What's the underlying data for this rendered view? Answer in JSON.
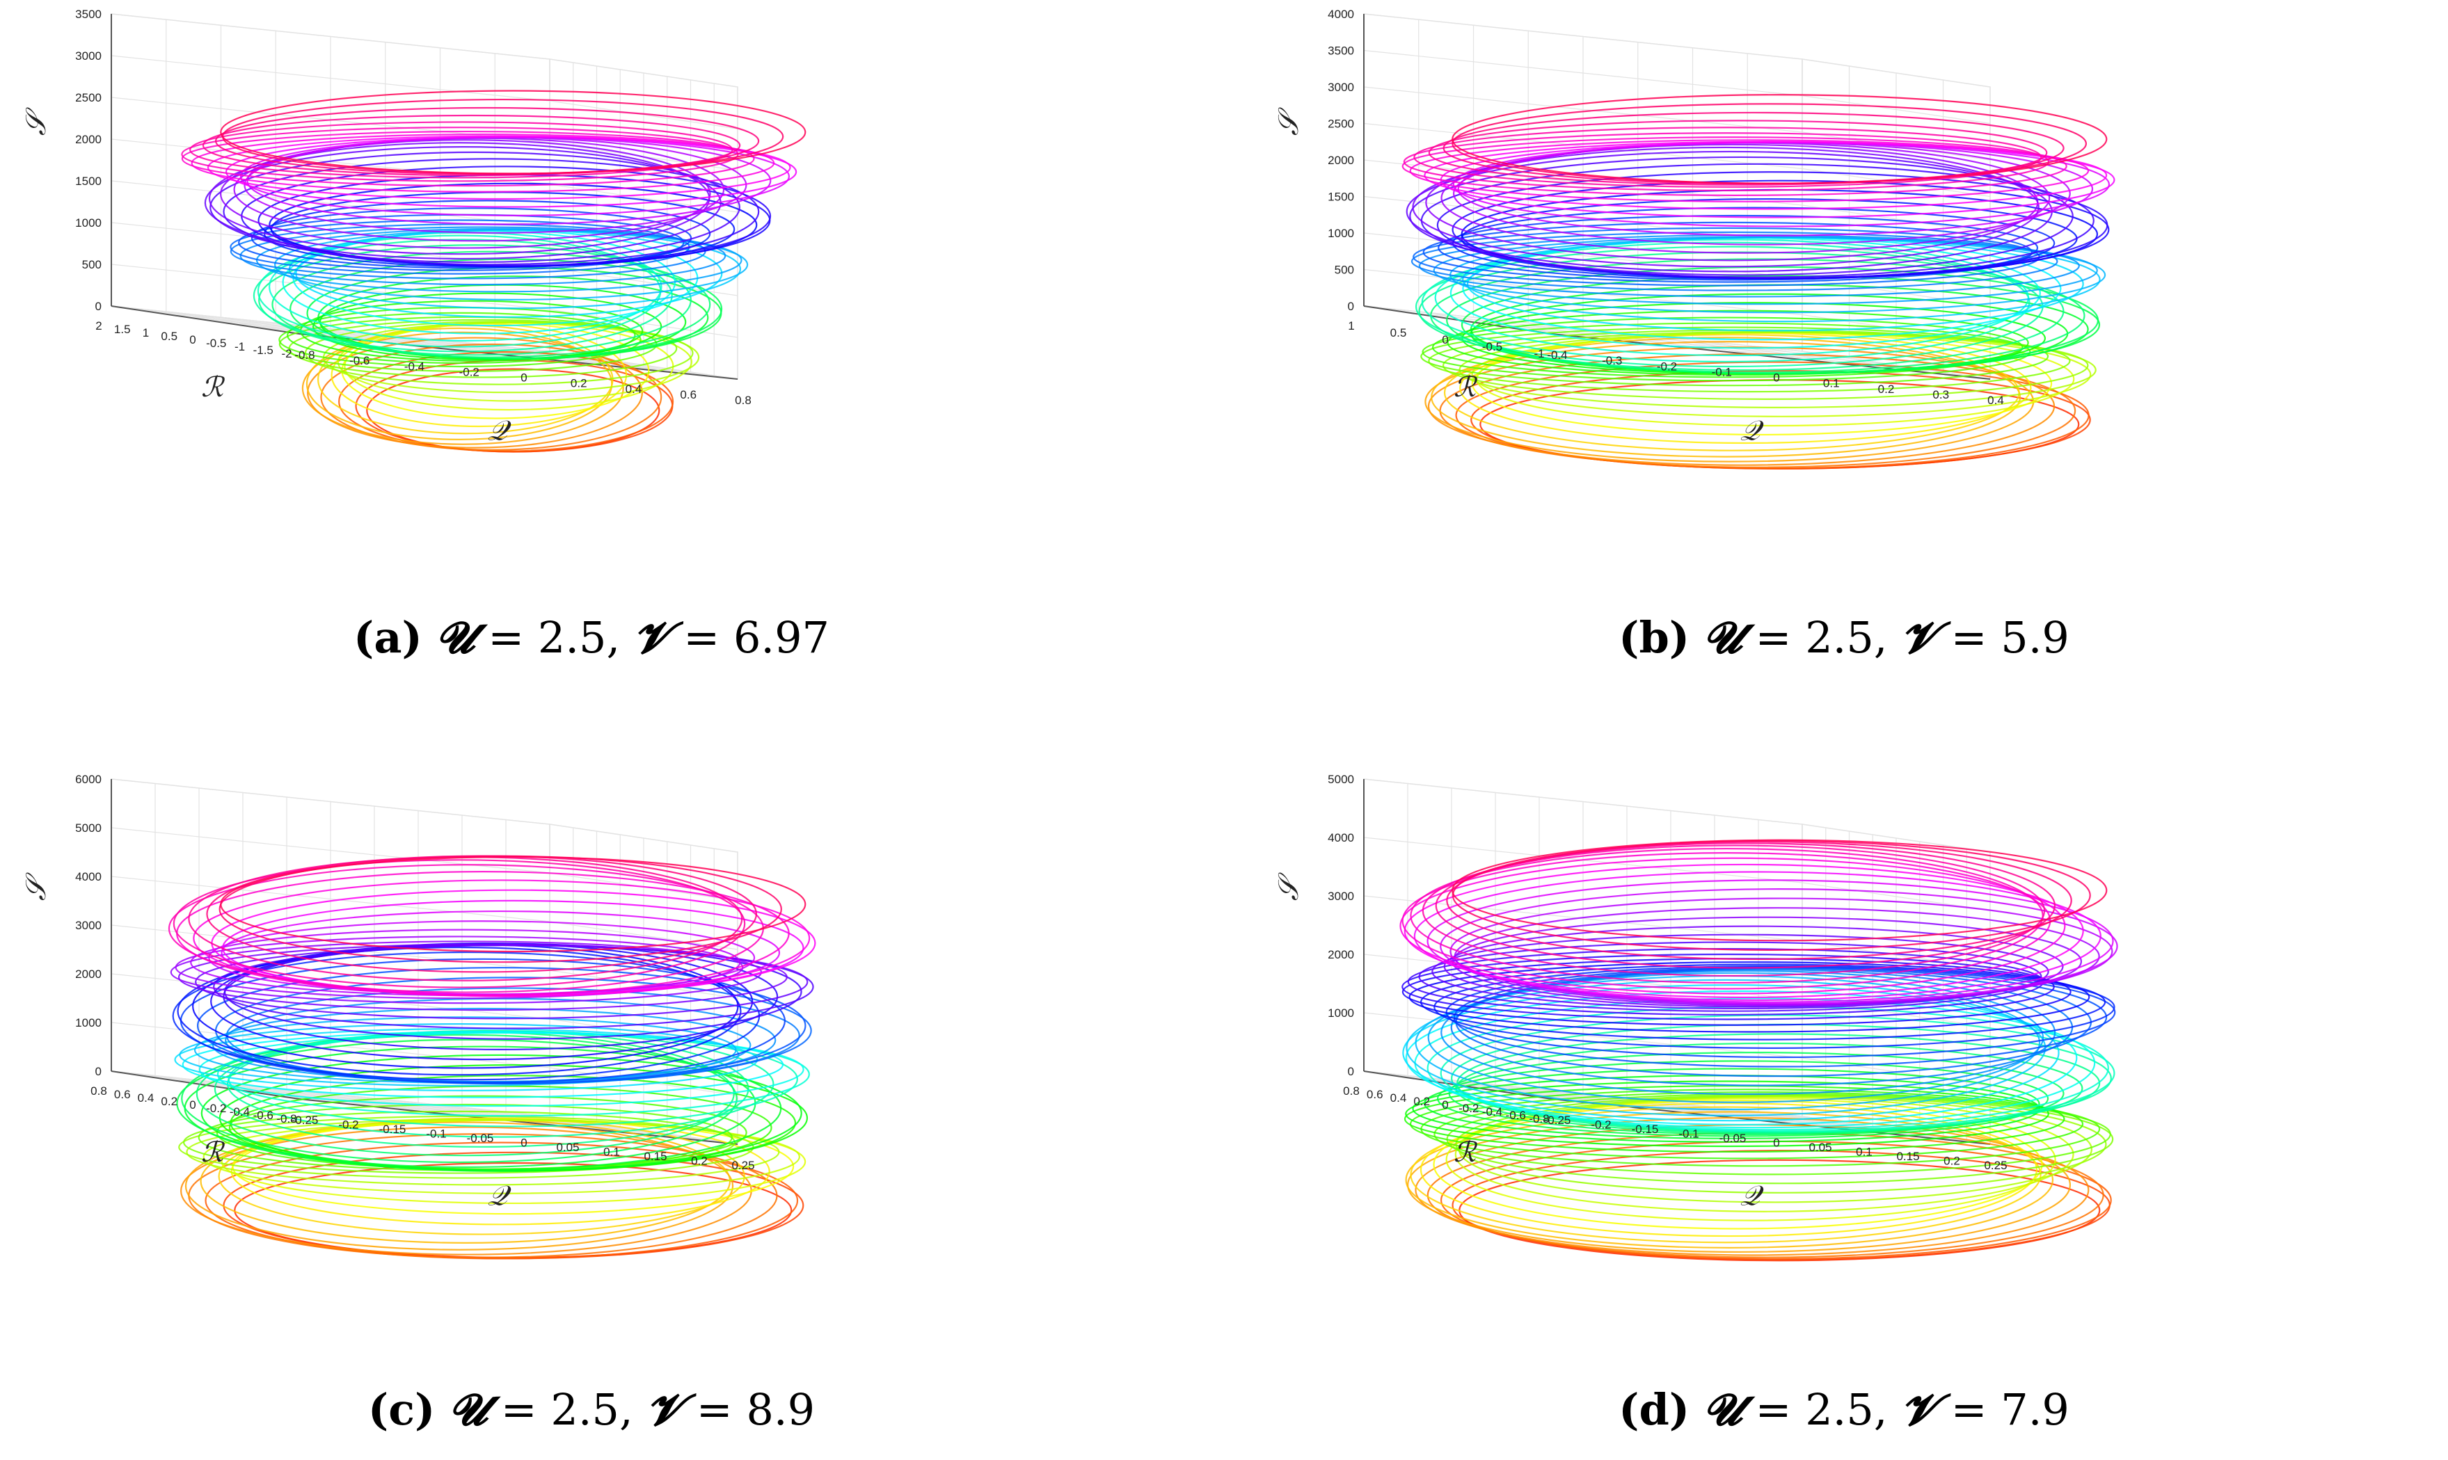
{
  "colors": {
    "spectrum_start": "#ff0000",
    "spectrum_mid": "#00ff66",
    "spectrum_end": "#ff0066",
    "grid": "#e3e3e3",
    "axis": "#555555"
  },
  "panels": [
    {
      "id": "a",
      "label": "(a)",
      "caption_params": {
        "u_symbol": "𝓤",
        "v_symbol": "𝓥",
        "eq": "=",
        "u": "2.5,",
        "v": "6.97"
      },
      "axes": {
        "xlabel": "𝒬",
        "ylabel": "ℛ",
        "zlabel": "𝒮",
        "x_ticks": [
          "-0.8",
          "-0.6",
          "-0.4",
          "-0.2",
          "0",
          "0.2",
          "0.4",
          "0.6",
          "0.8"
        ],
        "y_ticks": [
          "2",
          "1.5",
          "1",
          "0.5",
          "0",
          "-0.5",
          "-1",
          "-1.5",
          "-2"
        ],
        "z_ticks": [
          "0",
          "500",
          "1000",
          "1500",
          "2000",
          "2500",
          "3000",
          "3500"
        ]
      },
      "chart_data": {
        "type": "line",
        "series": [
          {
            "values": []
          }
        ],
        "shape": "cone",
        "xlim": [
          -0.8,
          0.8
        ],
        "ylim": [
          -2,
          2
        ],
        "zlim": [
          0,
          3500
        ],
        "grid": true
      }
    },
    {
      "id": "b",
      "label": "(b)",
      "caption_params": {
        "u_symbol": "𝓤",
        "v_symbol": "𝓥",
        "eq": "=",
        "u": "2.5,",
        "v": "5.9"
      },
      "axes": {
        "xlabel": "𝒬",
        "ylabel": "ℛ",
        "zlabel": "𝒮",
        "x_ticks": [
          "-0.4",
          "-0.3",
          "-0.2",
          "-0.1",
          "0",
          "0.1",
          "0.2",
          "0.3",
          "0.4"
        ],
        "y_ticks": [
          "1",
          "0.5",
          "0",
          "-0.5",
          "-1"
        ],
        "z_ticks": [
          "0",
          "500",
          "1000",
          "1500",
          "2000",
          "2500",
          "3000",
          "3500",
          "4000"
        ]
      },
      "chart_data": {
        "type": "line",
        "series": [
          {
            "values": []
          }
        ],
        "shape": "spiral-stack",
        "xlim": [
          -0.4,
          0.4
        ],
        "ylim": [
          -1,
          1
        ],
        "zlim": [
          0,
          4000
        ],
        "grid": true
      }
    },
    {
      "id": "c",
      "label": "(c)",
      "caption_params": {
        "u_symbol": "𝓤",
        "v_symbol": "𝓥",
        "eq": "=",
        "u": "2.5,",
        "v": "8.9"
      },
      "axes": {
        "xlabel": "𝒬",
        "ylabel": "ℛ",
        "zlabel": "𝒮",
        "x_ticks": [
          "-0.25",
          "-0.2",
          "-0.15",
          "-0.1",
          "-0.05",
          "0",
          "0.05",
          "0.1",
          "0.15",
          "0.2",
          "0.25"
        ],
        "y_ticks": [
          "0.8",
          "0.6",
          "0.4",
          "0.2",
          "0",
          "-0.2",
          "-0.4",
          "-0.6",
          "-0.8"
        ],
        "z_ticks": [
          "0",
          "1000",
          "2000",
          "3000",
          "4000",
          "5000",
          "6000"
        ]
      },
      "chart_data": {
        "type": "line",
        "series": [
          {
            "values": []
          }
        ],
        "shape": "dense-stack",
        "xlim": [
          -0.25,
          0.25
        ],
        "ylim": [
          -0.8,
          0.8
        ],
        "zlim": [
          0,
          6000
        ],
        "grid": true
      }
    },
    {
      "id": "d",
      "label": "(d)",
      "caption_params": {
        "u_symbol": "𝓤",
        "v_symbol": "𝓥",
        "eq": "=",
        "u": "2.5,",
        "v": "7.9"
      },
      "axes": {
        "xlabel": "𝒬",
        "ylabel": "ℛ",
        "zlabel": "𝒮",
        "x_ticks": [
          "-0.25",
          "-0.2",
          "-0.15",
          "-0.1",
          "-0.05",
          "0",
          "0.05",
          "0.1",
          "0.15",
          "0.2",
          "0.25"
        ],
        "y_ticks": [
          "0.8",
          "0.6",
          "0.4",
          "0.2",
          "0",
          "-0.2",
          "-0.4",
          "-0.6",
          "-0.8"
        ],
        "z_ticks": [
          "0",
          "1000",
          "2000",
          "3000",
          "4000",
          "5000"
        ]
      },
      "chart_data": {
        "type": "line",
        "series": [
          {
            "values": []
          }
        ],
        "shape": "wide-stack",
        "xlim": [
          -0.25,
          0.25
        ],
        "ylim": [
          -0.8,
          0.8
        ],
        "zlim": [
          0,
          5000
        ],
        "grid": true
      }
    }
  ]
}
